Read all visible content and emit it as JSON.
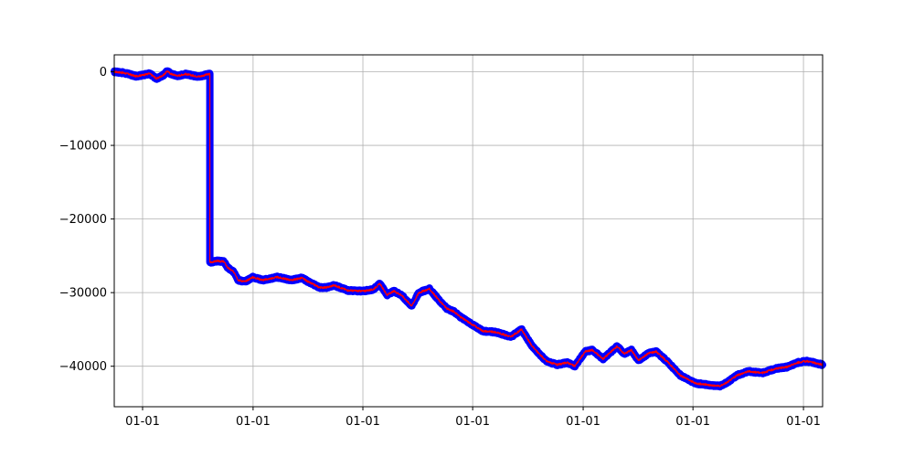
{
  "chart_data": {
    "type": "line",
    "title": "",
    "xlabel": "",
    "ylabel": "",
    "x_ticks": [
      "01-01",
      "01-01",
      "01-01",
      "01-01",
      "01-01",
      "01-01",
      "01-01"
    ],
    "y_ticks": [
      0,
      -10000,
      -20000,
      -30000,
      -40000
    ],
    "y_tick_labels": [
      "0",
      "−10000",
      "−20000",
      "−30000",
      "−40000"
    ],
    "xlim": [
      0,
      1000
    ],
    "ylim": [
      -45500,
      2300
    ],
    "grid": true,
    "x_tick_positions": [
      40,
      196,
      351,
      506,
      662,
      817,
      973
    ],
    "series": [
      {
        "color": "#ff0000",
        "marker_color": "#0000ff",
        "points": [
          [
            0,
            0
          ],
          [
            10,
            -100
          ],
          [
            20,
            -300
          ],
          [
            30,
            -600
          ],
          [
            40,
            -450
          ],
          [
            50,
            -250
          ],
          [
            60,
            -950
          ],
          [
            70,
            -400
          ],
          [
            75,
            100
          ],
          [
            80,
            -300
          ],
          [
            90,
            -550
          ],
          [
            100,
            -300
          ],
          [
            110,
            -500
          ],
          [
            120,
            -650
          ],
          [
            130,
            -400
          ],
          [
            135,
            -300
          ],
          [
            135,
            -25900
          ],
          [
            145,
            -25700
          ],
          [
            155,
            -25800
          ],
          [
            160,
            -26600
          ],
          [
            170,
            -27300
          ],
          [
            175,
            -28300
          ],
          [
            185,
            -28500
          ],
          [
            195,
            -27900
          ],
          [
            210,
            -28300
          ],
          [
            230,
            -27900
          ],
          [
            250,
            -28300
          ],
          [
            265,
            -28000
          ],
          [
            275,
            -28600
          ],
          [
            290,
            -29300
          ],
          [
            300,
            -29300
          ],
          [
            310,
            -29000
          ],
          [
            330,
            -29700
          ],
          [
            350,
            -29800
          ],
          [
            365,
            -29600
          ],
          [
            375,
            -28800
          ],
          [
            385,
            -30300
          ],
          [
            395,
            -29800
          ],
          [
            405,
            -30300
          ],
          [
            420,
            -31800
          ],
          [
            430,
            -30000
          ],
          [
            445,
            -29500
          ],
          [
            460,
            -31200
          ],
          [
            470,
            -32200
          ],
          [
            480,
            -32600
          ],
          [
            490,
            -33400
          ],
          [
            500,
            -34000
          ],
          [
            520,
            -35200
          ],
          [
            540,
            -35400
          ],
          [
            560,
            -36000
          ],
          [
            575,
            -35000
          ],
          [
            590,
            -37300
          ],
          [
            610,
            -39300
          ],
          [
            625,
            -39800
          ],
          [
            640,
            -39500
          ],
          [
            650,
            -40000
          ],
          [
            665,
            -38000
          ],
          [
            675,
            -37800
          ],
          [
            690,
            -39000
          ],
          [
            710,
            -37300
          ],
          [
            720,
            -38300
          ],
          [
            730,
            -37800
          ],
          [
            740,
            -39200
          ],
          [
            755,
            -38200
          ],
          [
            765,
            -38000
          ],
          [
            780,
            -39300
          ],
          [
            800,
            -41300
          ],
          [
            820,
            -42300
          ],
          [
            835,
            -42500
          ],
          [
            855,
            -42700
          ],
          [
            865,
            -42200
          ],
          [
            880,
            -41200
          ],
          [
            895,
            -40700
          ],
          [
            915,
            -40900
          ],
          [
            935,
            -40300
          ],
          [
            950,
            -40100
          ],
          [
            965,
            -39500
          ],
          [
            978,
            -39300
          ],
          [
            1000,
            -39800
          ]
        ]
      }
    ]
  }
}
